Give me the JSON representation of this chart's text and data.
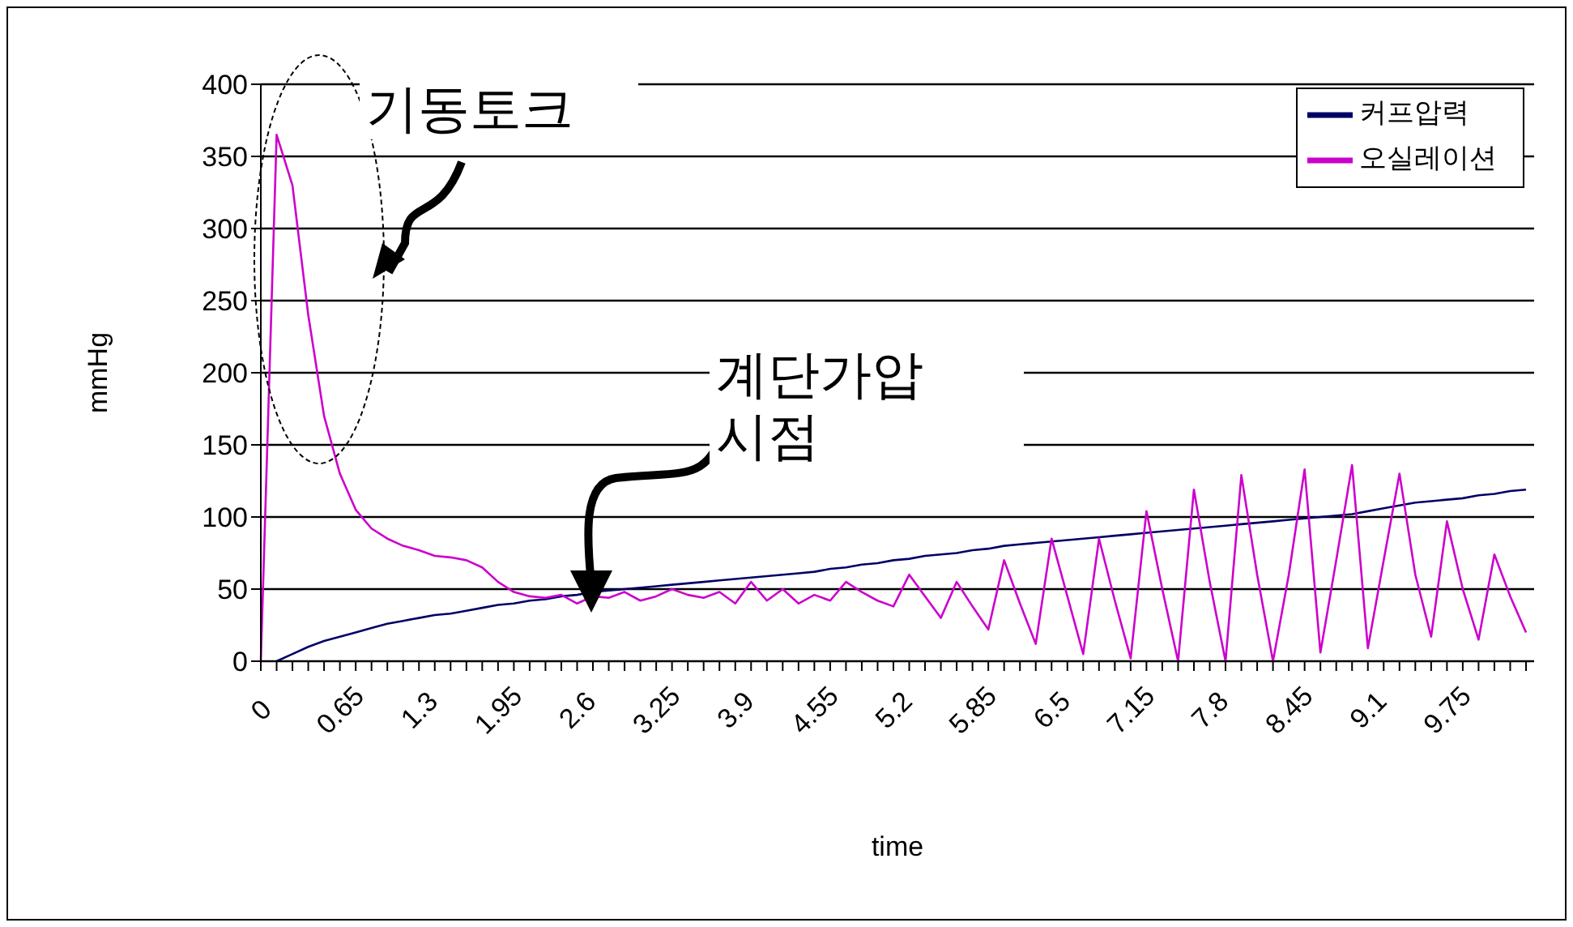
{
  "chart_data": {
    "type": "line",
    "xlabel": "time",
    "ylabel": "mmHg",
    "categories": [
      "0",
      null,
      null,
      null,
      null,
      "0.65",
      null,
      null,
      null,
      null,
      "1.3",
      null,
      null,
      null,
      null,
      "1.95",
      null,
      null,
      null,
      null,
      "2.6",
      null,
      null,
      null,
      null,
      "3.25",
      null,
      null,
      null,
      null,
      "3.9",
      null,
      null,
      null,
      null,
      "4.55",
      null,
      null,
      null,
      null,
      "5.2",
      null,
      null,
      null,
      null,
      "5.85",
      null,
      null,
      null,
      null,
      "6.5",
      null,
      null,
      null,
      null,
      "7.15",
      null,
      null,
      null,
      null,
      "7.8",
      null,
      null,
      null,
      null,
      "8.45",
      null,
      null,
      null,
      null,
      "9.1",
      null,
      null,
      null,
      null,
      "9.75",
      null,
      null,
      null,
      null,
      null
    ],
    "series": [
      {
        "name": "커프압력",
        "color": "#000066",
        "values": [
          null,
          0,
          5,
          10,
          14,
          17,
          20,
          23,
          26,
          28,
          30,
          32,
          33,
          35,
          37,
          39,
          40,
          42,
          43,
          45,
          46,
          48,
          49,
          50,
          51,
          52,
          53,
          54,
          55,
          56,
          57,
          58,
          59,
          60,
          61,
          62,
          64,
          65,
          67,
          68,
          70,
          71,
          73,
          74,
          75,
          77,
          78,
          80,
          81,
          82,
          83,
          84,
          85,
          86,
          87,
          88,
          89,
          90,
          91,
          92,
          93,
          94,
          95,
          96,
          97,
          98,
          99,
          100,
          101,
          102,
          104,
          106,
          108,
          110,
          111,
          112,
          113,
          115,
          116,
          118,
          119
        ]
      },
      {
        "name": "오실레이션",
        "color": "#cc00cc",
        "values": [
          0,
          365,
          330,
          240,
          170,
          130,
          105,
          92,
          85,
          80,
          77,
          73,
          72,
          70,
          65,
          55,
          48,
          45,
          44,
          46,
          40,
          45,
          44,
          48,
          42,
          45,
          50,
          46,
          44,
          48,
          40,
          55,
          42,
          50,
          40,
          46,
          42,
          55,
          48,
          42,
          38,
          60,
          45,
          30,
          55,
          38,
          22,
          70,
          40,
          12,
          85,
          45,
          5,
          85,
          42,
          2,
          104,
          50,
          0,
          119,
          55,
          0,
          129,
          60,
          0,
          60,
          133,
          6,
          70,
          136,
          9,
          70,
          130,
          60,
          17,
          97,
          50,
          15,
          74,
          45,
          20
        ]
      }
    ],
    "ylim": [
      0,
      400
    ],
    "yticks": [
      0,
      50,
      100,
      150,
      200,
      250,
      300,
      350,
      400
    ],
    "grid": "y",
    "legend": "top right",
    "annotations": [
      "기동토크",
      "계단가압\n시점"
    ]
  }
}
